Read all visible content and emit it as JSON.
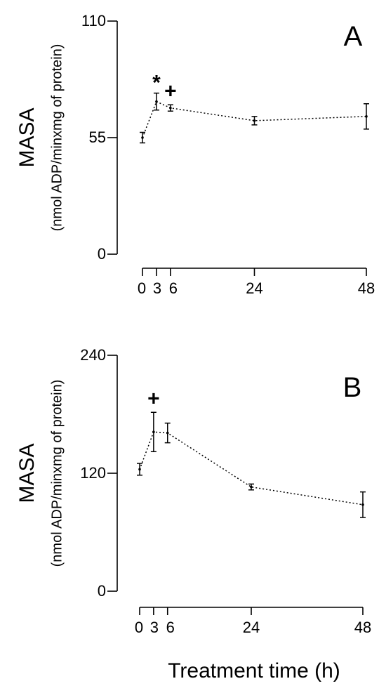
{
  "chart_data": [
    {
      "type": "line",
      "panel_label": "A",
      "ylabel": "MASA",
      "ylabel_units": "(nmol ADP/minxmg of protein)",
      "x": [
        0,
        3,
        6,
        24,
        48
      ],
      "y": [
        55,
        72,
        69,
        63,
        65
      ],
      "err": [
        2.5,
        4,
        1.5,
        2,
        6
      ],
      "x_ticks": [
        0,
        3,
        6,
        24,
        48
      ],
      "x_tick_labels": [
        "0",
        "3",
        "6",
        "24",
        "48"
      ],
      "y_ticks": [
        0,
        55,
        110
      ],
      "y_tick_labels": [
        "0",
        "55",
        "110"
      ],
      "ylim": [
        0,
        110
      ],
      "xlim": [
        0,
        48
      ],
      "markers": [
        {
          "symbol": "*",
          "x": 3,
          "y": 81
        },
        {
          "symbol": "+",
          "x": 6,
          "y": 77
        }
      ],
      "grid": false
    },
    {
      "type": "line",
      "panel_label": "B",
      "ylabel": "MASA",
      "ylabel_units": "(nmol ADP/minxmg of protein)",
      "x": [
        0,
        3,
        6,
        24,
        48
      ],
      "y": [
        124,
        162,
        161,
        106,
        88
      ],
      "err": [
        6,
        20,
        10,
        3,
        13
      ],
      "x_ticks": [
        0,
        3,
        6,
        24,
        48
      ],
      "x_tick_labels": [
        "0",
        "3",
        "6",
        "24",
        "48"
      ],
      "y_ticks": [
        0,
        120,
        240
      ],
      "y_tick_labels": [
        "0",
        "120",
        "240"
      ],
      "ylim": [
        0,
        240
      ],
      "xlim": [
        0,
        48
      ],
      "markers": [
        {
          "symbol": "+",
          "x": 3,
          "y": 196
        }
      ],
      "grid": false
    }
  ],
  "xlabel": "Treatment time (h)"
}
